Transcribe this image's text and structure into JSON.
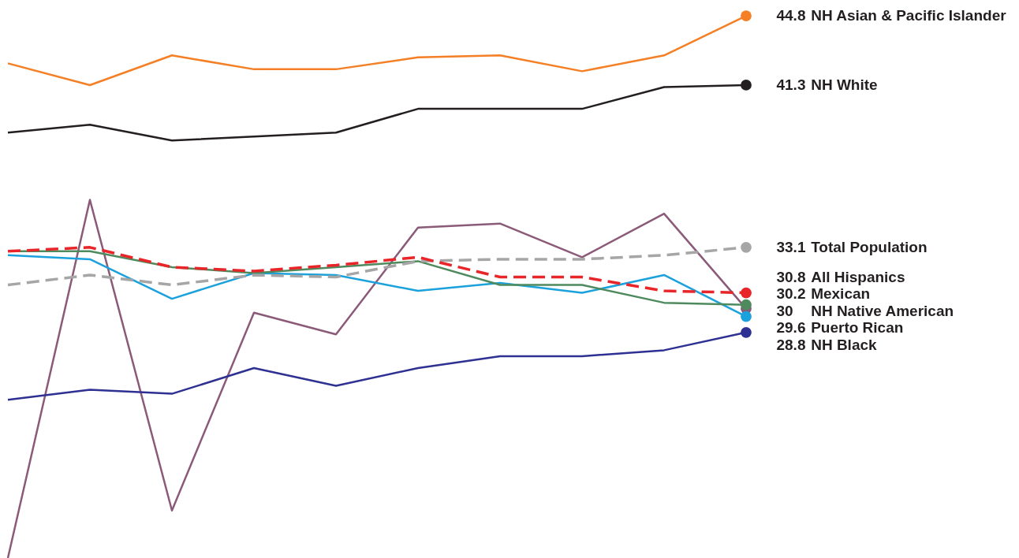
{
  "chart_data": {
    "type": "line",
    "categories": [
      null,
      null,
      null,
      null,
      null,
      null,
      null,
      null,
      null,
      null
    ],
    "ylim": [
      17.4,
      45.6
    ],
    "tick_labels": false,
    "series": [
      {
        "name": "NH Asian & Pacific Islander",
        "color": "#f47f24",
        "values": [
          42.4,
          41.3,
          42.8,
          42.1,
          42.1,
          42.7,
          42.8,
          42.0,
          42.8,
          44.8
        ],
        "value_labels": [
          null,
          null,
          null,
          null,
          null,
          null,
          null,
          null,
          null,
          "44.8"
        ]
      },
      {
        "name": "NH White",
        "color": "#231f20",
        "values": [
          38.9,
          39.3,
          38.5,
          38.7,
          38.9,
          40.1,
          40.1,
          40.1,
          41.2,
          41.3
        ],
        "value_labels": [
          null,
          null,
          null,
          null,
          null,
          null,
          null,
          null,
          null,
          "41.3"
        ]
      },
      {
        "name": "NH Native American",
        "color": "#8b5a78",
        "values": [
          17.4,
          35.5,
          19.8,
          29.8,
          28.7,
          34.1,
          34.3,
          32.6,
          34.8,
          30.0
        ],
        "value_labels": [
          null,
          null,
          null,
          null,
          null,
          null,
          null,
          null,
          null,
          "30"
        ]
      },
      {
        "name": "NH Black",
        "color": "#2e3192",
        "values": [
          25.4,
          25.9,
          25.7,
          27.0,
          26.1,
          27.0,
          27.6,
          27.6,
          27.9,
          28.8
        ],
        "value_labels": [
          null,
          null,
          null,
          null,
          null,
          null,
          null,
          null,
          null,
          "28.8"
        ]
      },
      {
        "name": "Puerto Rican",
        "color": "#1ba1db",
        "values": [
          32.7,
          32.5,
          30.5,
          31.8,
          31.7,
          30.9,
          31.3,
          30.8,
          31.7,
          29.6
        ],
        "value_labels": [
          null,
          null,
          null,
          null,
          null,
          null,
          null,
          null,
          null,
          "29.6"
        ]
      },
      {
        "name": "Mexican",
        "color": "#4e8a5e",
        "values": [
          32.9,
          32.9,
          32.1,
          31.8,
          32.1,
          32.4,
          31.2,
          31.2,
          30.3,
          30.2
        ],
        "value_labels": [
          null,
          null,
          null,
          null,
          null,
          null,
          null,
          null,
          null,
          "30.2"
        ]
      },
      {
        "name": "Total Population",
        "color": "#a6a6a6",
        "line_style": "dashed",
        "values": [
          31.2,
          31.7,
          31.2,
          31.7,
          31.6,
          32.4,
          32.5,
          32.5,
          32.7,
          33.1
        ],
        "value_labels": [
          null,
          null,
          null,
          null,
          null,
          null,
          null,
          null,
          null,
          "33.1"
        ]
      },
      {
        "name": "All Hispanics",
        "color": "#e8262a",
        "line_style": "dashed",
        "values": [
          32.9,
          33.1,
          32.1,
          31.9,
          32.2,
          32.6,
          31.6,
          31.6,
          30.9,
          30.8
        ],
        "value_labels": [
          null,
          null,
          null,
          null,
          null,
          null,
          null,
          null,
          null,
          "30.8"
        ]
      }
    ]
  }
}
